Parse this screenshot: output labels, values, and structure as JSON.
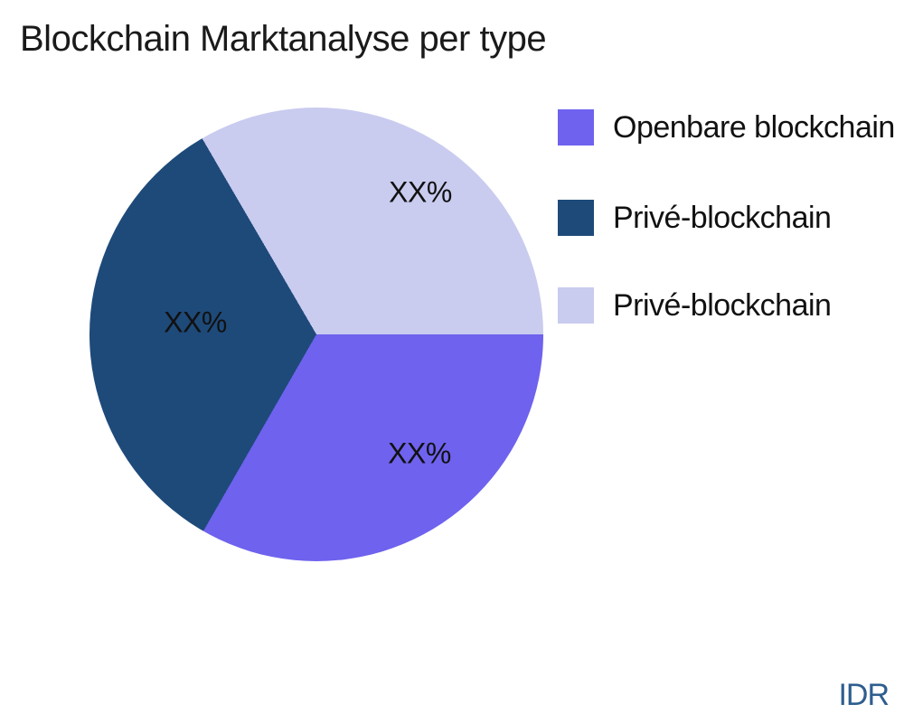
{
  "title": "Blockchain Marktanalyse per type",
  "watermark": "IDR",
  "colors": {
    "text": "#1a1a1a",
    "watermark": "#2E5E8E",
    "background": "#ffffff"
  },
  "chart_data": {
    "type": "pie",
    "title": "Blockchain Marktanalyse per type",
    "start_angle_deg_clockwise_from_top": 90,
    "direction": "clockwise",
    "legend_position": "right",
    "slices": [
      {
        "label": "Openbare blockchain",
        "value_pct": 33.3,
        "display_value": "XX%",
        "color": "#6E62EE"
      },
      {
        "label": "Privé-blockchain",
        "value_pct": 33.3,
        "display_value": "XX%",
        "color": "#1E4A7A"
      },
      {
        "label": "Privé-blockchain",
        "value_pct": 33.4,
        "display_value": "XX%",
        "color": "#C9CBEF"
      }
    ]
  }
}
